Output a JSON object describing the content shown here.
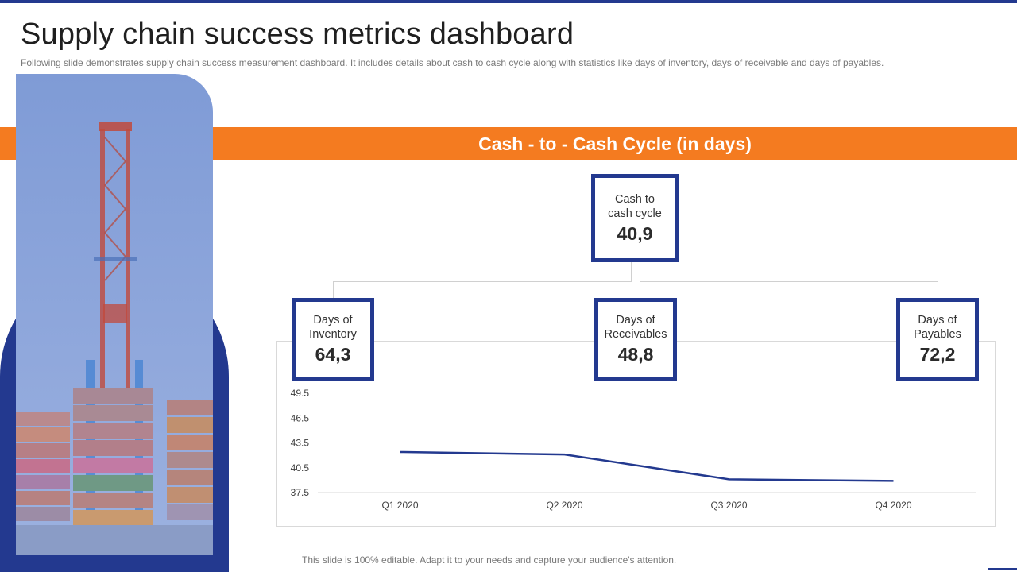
{
  "header": {
    "title": "Supply chain success metrics dashboard",
    "subtitle": "Following slide demonstrates supply chain success measurement dashboard. It includes details about cash to cash cycle along with statistics like days of inventory,  days of receivable  and days of payables."
  },
  "band": {
    "title": "Cash - to - Cash Cycle (in days)"
  },
  "metrics": {
    "cash_cycle": {
      "label": "Cash to\ncash cycle",
      "value": "40,9"
    },
    "inventory": {
      "label": "Days of\nInventory",
      "value": "64,3"
    },
    "receivables": {
      "label": "Days of\nReceivables",
      "value": "48,8"
    },
    "payables": {
      "label": "Days of\nPayables",
      "value": "72,2"
    }
  },
  "chart_data": {
    "type": "line",
    "title": "",
    "xlabel": "",
    "ylabel": "",
    "categories": [
      "Q1 2020",
      "Q2 2020",
      "Q3 2020",
      "Q4 2020"
    ],
    "series": [
      {
        "name": "Cash to cash cycle",
        "values": [
          42.4,
          42.1,
          39.1,
          38.9
        ]
      }
    ],
    "yticks": [
      "49.5",
      "46.5",
      "43.5",
      "40.5",
      "37.5"
    ],
    "ylim": [
      37.5,
      49.5
    ],
    "grid": false
  },
  "colors": {
    "navy": "#23398f",
    "orange": "#f47b20",
    "line": "#23398f"
  },
  "footer": {
    "text": "This slide is 100% editable. Adapt it to your needs and capture your audience's attention."
  }
}
